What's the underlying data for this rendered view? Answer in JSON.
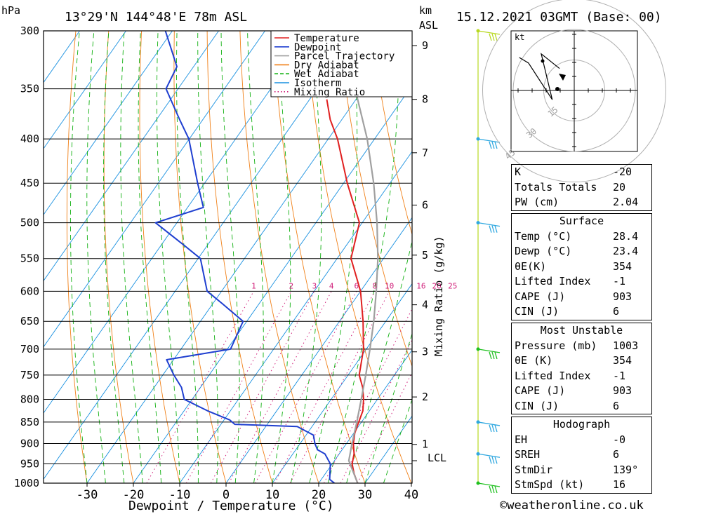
{
  "header": {
    "location": "13°29'N  144°48'E  78m  ASL",
    "datetime": "15.12.2021  03GMT  (Base: 00)",
    "hpa_label": "hPa",
    "km_label": "km",
    "asl_label": "ASL"
  },
  "chart_data": {
    "type": "line",
    "subtype": "skew-T log-P",
    "xlabel": "Dewpoint / Temperature (°C)",
    "ylabel_right": "Mixing Ratio (g/kg)",
    "xlim": [
      -40,
      40
    ],
    "ylim": [
      1000,
      300
    ],
    "x_ticks": [
      -30,
      -20,
      -10,
      0,
      10,
      20,
      30,
      40
    ],
    "pressure_levels": [
      300,
      350,
      400,
      450,
      500,
      550,
      600,
      650,
      700,
      750,
      800,
      850,
      900,
      950,
      1000
    ],
    "km_ticks": [
      {
        "km": "1",
        "p": 902
      },
      {
        "km": "2",
        "p": 795
      },
      {
        "km": "3",
        "p": 705
      },
      {
        "km": "4",
        "p": 622
      },
      {
        "km": "5",
        "p": 545
      },
      {
        "km": "6",
        "p": 477
      },
      {
        "km": "7",
        "p": 415
      },
      {
        "km": "8",
        "p": 360
      },
      {
        "km": "9",
        "p": 312
      }
    ],
    "lcl_label": "LCL",
    "lcl_p": 942,
    "mixing_ratio_labels": [
      "1",
      "2",
      "3",
      "4",
      "6",
      "8",
      "10",
      "16",
      "20",
      "25"
    ],
    "mixing_ratio_values": [
      1,
      2,
      3,
      4,
      6,
      8,
      10,
      16,
      20,
      25
    ],
    "mixing_ratio_label_p": 600,
    "legend": [
      {
        "name": "Temperature",
        "color": "#e02020",
        "dash": "solid"
      },
      {
        "name": "Dewpoint",
        "color": "#1f3fd0",
        "dash": "solid"
      },
      {
        "name": "Parcel Trajectory",
        "color": "#a0a0a0",
        "dash": "solid"
      },
      {
        "name": "Dry Adiabat",
        "color": "#f08018",
        "dash": "solid"
      },
      {
        "name": "Wet Adiabat",
        "color": "#10b010",
        "dash": "dashed"
      },
      {
        "name": "Isotherm",
        "color": "#1890e0",
        "dash": "solid"
      },
      {
        "name": "Mixing Ratio",
        "color": "#d0207a",
        "dash": "dotted"
      }
    ],
    "series": [
      {
        "name": "Temperature",
        "points": [
          {
            "p": 1000,
            "t": 28.4
          },
          {
            "p": 975,
            "t": 26.2
          },
          {
            "p": 950,
            "t": 24.3
          },
          {
            "p": 925,
            "t": 23.2
          },
          {
            "p": 900,
            "t": 21.5
          },
          {
            "p": 875,
            "t": 20.2
          },
          {
            "p": 850,
            "t": 19.4
          },
          {
            "p": 825,
            "t": 18.6
          },
          {
            "p": 800,
            "t": 17.0
          },
          {
            "p": 775,
            "t": 15.0
          },
          {
            "p": 750,
            "t": 12.4
          },
          {
            "p": 700,
            "t": 9.4
          },
          {
            "p": 650,
            "t": 5.1
          },
          {
            "p": 600,
            "t": 0.0
          },
          {
            "p": 550,
            "t": -7.0
          },
          {
            "p": 500,
            "t": -10.6
          },
          {
            "p": 450,
            "t": -19.2
          },
          {
            "p": 400,
            "t": -28.0
          },
          {
            "p": 380,
            "t": -32.5
          },
          {
            "p": 360,
            "t": -36.3
          }
        ]
      },
      {
        "name": "Dewpoint",
        "points": [
          {
            "p": 1000,
            "t": 23.4
          },
          {
            "p": 990,
            "t": 21.8
          },
          {
            "p": 950,
            "t": 19.6
          },
          {
            "p": 925,
            "t": 16.9
          },
          {
            "p": 915,
            "t": 14.7
          },
          {
            "p": 900,
            "t": 13.2
          },
          {
            "p": 880,
            "t": 11.6
          },
          {
            "p": 860,
            "t": 6.8
          },
          {
            "p": 855,
            "t": -7.0
          },
          {
            "p": 845,
            "t": -8.8
          },
          {
            "p": 825,
            "t": -14.9
          },
          {
            "p": 800,
            "t": -21.7
          },
          {
            "p": 775,
            "t": -24.1
          },
          {
            "p": 750,
            "t": -27.6
          },
          {
            "p": 720,
            "t": -31.5
          },
          {
            "p": 700,
            "t": -19.3
          },
          {
            "p": 650,
            "t": -20.8
          },
          {
            "p": 620,
            "t": -28.0
          },
          {
            "p": 600,
            "t": -33.1
          },
          {
            "p": 550,
            "t": -39.5
          },
          {
            "p": 530,
            "t": -45.3
          },
          {
            "p": 500,
            "t": -54.6
          },
          {
            "p": 480,
            "t": -46.6
          },
          {
            "p": 450,
            "t": -51.5
          },
          {
            "p": 400,
            "t": -60.1
          },
          {
            "p": 380,
            "t": -65.0
          },
          {
            "p": 350,
            "t": -72.6
          },
          {
            "p": 330,
            "t": -73.6
          },
          {
            "p": 300,
            "t": -81.5
          }
        ]
      },
      {
        "name": "Parcel Trajectory",
        "points": [
          {
            "p": 1000,
            "t": 28.4
          },
          {
            "p": 942,
            "t": 23.1
          },
          {
            "p": 900,
            "t": 21.2
          },
          {
            "p": 850,
            "t": 19.0
          },
          {
            "p": 800,
            "t": 16.5
          },
          {
            "p": 750,
            "t": 13.8
          },
          {
            "p": 700,
            "t": 10.8
          },
          {
            "p": 650,
            "t": 7.4
          },
          {
            "p": 600,
            "t": 3.4
          },
          {
            "p": 550,
            "t": -1.2
          },
          {
            "p": 500,
            "t": -6.8
          },
          {
            "p": 450,
            "t": -13.5
          },
          {
            "p": 400,
            "t": -21.6
          },
          {
            "p": 350,
            "t": -31.8
          }
        ]
      }
    ],
    "wind_barbs": [
      {
        "p": 300,
        "color": "#b8d820"
      },
      {
        "p": 400,
        "color": "#30a8e0"
      },
      {
        "p": 500,
        "color": "#30a8e0"
      },
      {
        "p": 700,
        "color": "#20c020"
      },
      {
        "p": 850,
        "color": "#30a8e0"
      },
      {
        "p": 925,
        "color": "#30a8e0"
      },
      {
        "p": 1000,
        "color": "#20c020"
      }
    ]
  },
  "hodograph": {
    "unit_label": "kt",
    "ring_labels": [
      "15",
      "30",
      "45"
    ],
    "points_kt": [
      [
        -8,
        -12
      ],
      [
        -18,
        -20
      ],
      [
        -12,
        5
      ],
      [
        -25,
        -15
      ],
      [
        -30,
        -18
      ]
    ]
  },
  "indices": {
    "general": [
      {
        "label": "K",
        "value": "-20"
      },
      {
        "label": "Totals Totals",
        "value": "20"
      },
      {
        "label": "PW (cm)",
        "value": "2.04"
      }
    ],
    "surface": {
      "title": "Surface",
      "rows": [
        {
          "label": "Temp (°C)",
          "value": "28.4"
        },
        {
          "label": "Dewp (°C)",
          "value": "23.4"
        },
        {
          "label": "θE(K)",
          "value": "354"
        },
        {
          "label": "Lifted Index",
          "value": "-1"
        },
        {
          "label": "CAPE (J)",
          "value": "903"
        },
        {
          "label": "CIN (J)",
          "value": "6"
        }
      ]
    },
    "most_unstable": {
      "title": "Most Unstable",
      "rows": [
        {
          "label": "Pressure (mb)",
          "value": "1003"
        },
        {
          "label": "θE (K)",
          "value": "354"
        },
        {
          "label": "Lifted Index",
          "value": "-1"
        },
        {
          "label": "CAPE (J)",
          "value": "903"
        },
        {
          "label": "CIN (J)",
          "value": "6"
        }
      ]
    },
    "hodograph_box": {
      "title": "Hodograph",
      "rows": [
        {
          "label": "EH",
          "value": "-0"
        },
        {
          "label": "SREH",
          "value": "6"
        },
        {
          "label": "StmDir",
          "value": "139°"
        },
        {
          "label": "StmSpd (kt)",
          "value": "16"
        }
      ]
    }
  },
  "footer": {
    "copyright": "©weatheronline.co.uk"
  }
}
